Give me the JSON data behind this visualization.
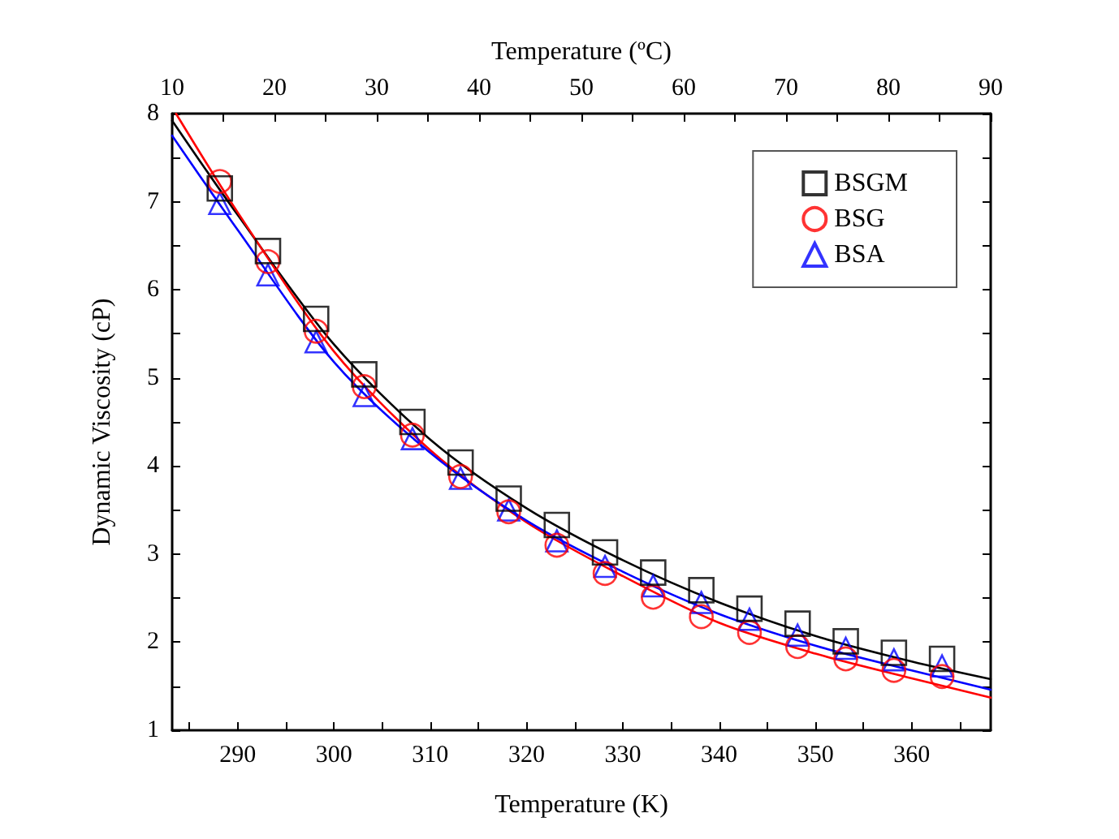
{
  "chart_data": {
    "type": "scatter",
    "xlabel": "Temperature (K)",
    "ylabel": "Dynamic Viscosity (cP)",
    "x2label": "Temperature (ºC)",
    "xlim": [
      283.2,
      368.2
    ],
    "xticks": [
      {
        "value": 285,
        "label": null
      },
      290,
      {
        "value": 295,
        "label": null
      },
      300,
      {
        "value": 305,
        "label": null
      },
      310,
      {
        "value": 315,
        "label": null
      },
      320,
      {
        "value": 325,
        "label": null
      },
      330,
      {
        "value": 335,
        "label": null
      },
      340,
      {
        "value": 345,
        "label": null
      },
      350,
      {
        "value": 355,
        "label": null
      },
      360,
      {
        "value": 365,
        "label": null
      }
    ],
    "x2lim": [
      10,
      90
    ],
    "x2ticks": [
      10,
      {
        "value": 15,
        "label": null
      },
      20,
      {
        "value": 25,
        "label": null
      },
      30,
      {
        "value": 35,
        "label": null
      },
      40,
      {
        "value": 45,
        "label": null
      },
      50,
      {
        "value": 55,
        "label": null
      },
      60,
      {
        "value": 65,
        "label": null
      },
      70,
      {
        "value": 75,
        "label": null
      },
      80,
      {
        "value": 85,
        "label": null
      },
      90
    ],
    "ylim": [
      1,
      8
    ],
    "yticks": [
      1,
      {
        "value": 1.5,
        "label": null
      },
      2,
      {
        "value": 2.5,
        "label": null
      },
      3,
      {
        "value": 3.5,
        "label": null
      },
      4,
      {
        "value": 4.5,
        "label": null
      },
      5,
      {
        "value": 5.5,
        "label": null
      },
      6,
      {
        "value": 6.5,
        "label": null
      },
      7,
      {
        "value": 7.5,
        "label": null
      },
      8
    ],
    "grid": false,
    "legend": "top right",
    "x": [
      288.15,
      293.15,
      298.15,
      303.15,
      308.15,
      313.15,
      318.15,
      323.15,
      328.15,
      333.15,
      338.15,
      343.15,
      348.15,
      353.15,
      358.15,
      363.15
    ],
    "series": [
      {
        "name": "BSGM",
        "color": "#000000",
        "marker": "square",
        "values": [
          7.15,
          6.44,
          5.67,
          5.04,
          4.5,
          4.04,
          3.63,
          3.33,
          3.02,
          2.79,
          2.59,
          2.38,
          2.21,
          2.01,
          1.88,
          1.81
        ]
      },
      {
        "name": "BSG",
        "color": "#ff0000",
        "marker": "circle",
        "values": [
          7.23,
          6.32,
          5.53,
          4.9,
          4.35,
          3.88,
          3.48,
          3.1,
          2.78,
          2.51,
          2.29,
          2.11,
          1.95,
          1.81,
          1.68,
          1.61
        ]
      },
      {
        "name": "BSA",
        "color": "#0000ff",
        "marker": "triangle",
        "values": [
          6.98,
          6.17,
          5.41,
          4.8,
          4.31,
          3.86,
          3.5,
          3.15,
          2.86,
          2.64,
          2.45,
          2.26,
          2.08,
          1.93,
          1.8,
          1.73
        ]
      },
      {
        "type": "line",
        "color": "#000000",
        "marker": "none",
        "x": [
          283.2,
          290,
          300,
          310,
          320,
          330,
          340,
          350,
          360,
          368.2
        ],
        "values": [
          7.92,
          6.85,
          5.38,
          4.3,
          3.52,
          2.93,
          2.45,
          2.07,
          1.78,
          1.58
        ]
      },
      {
        "type": "line",
        "color": "#ff0000",
        "marker": "none",
        "x": [
          283.6,
          290,
          300,
          310,
          320,
          330,
          340,
          350,
          360,
          368.2
        ],
        "values": [
          8.0,
          6.88,
          5.3,
          4.18,
          3.36,
          2.75,
          2.22,
          1.87,
          1.59,
          1.37
        ]
      },
      {
        "type": "line",
        "color": "#0000ff",
        "marker": "none",
        "x": [
          283.2,
          290,
          300,
          310,
          320,
          330,
          340,
          350,
          360,
          368.2
        ],
        "values": [
          7.75,
          6.68,
          5.18,
          4.15,
          3.38,
          2.8,
          2.32,
          1.96,
          1.68,
          1.46
        ]
      }
    ]
  }
}
